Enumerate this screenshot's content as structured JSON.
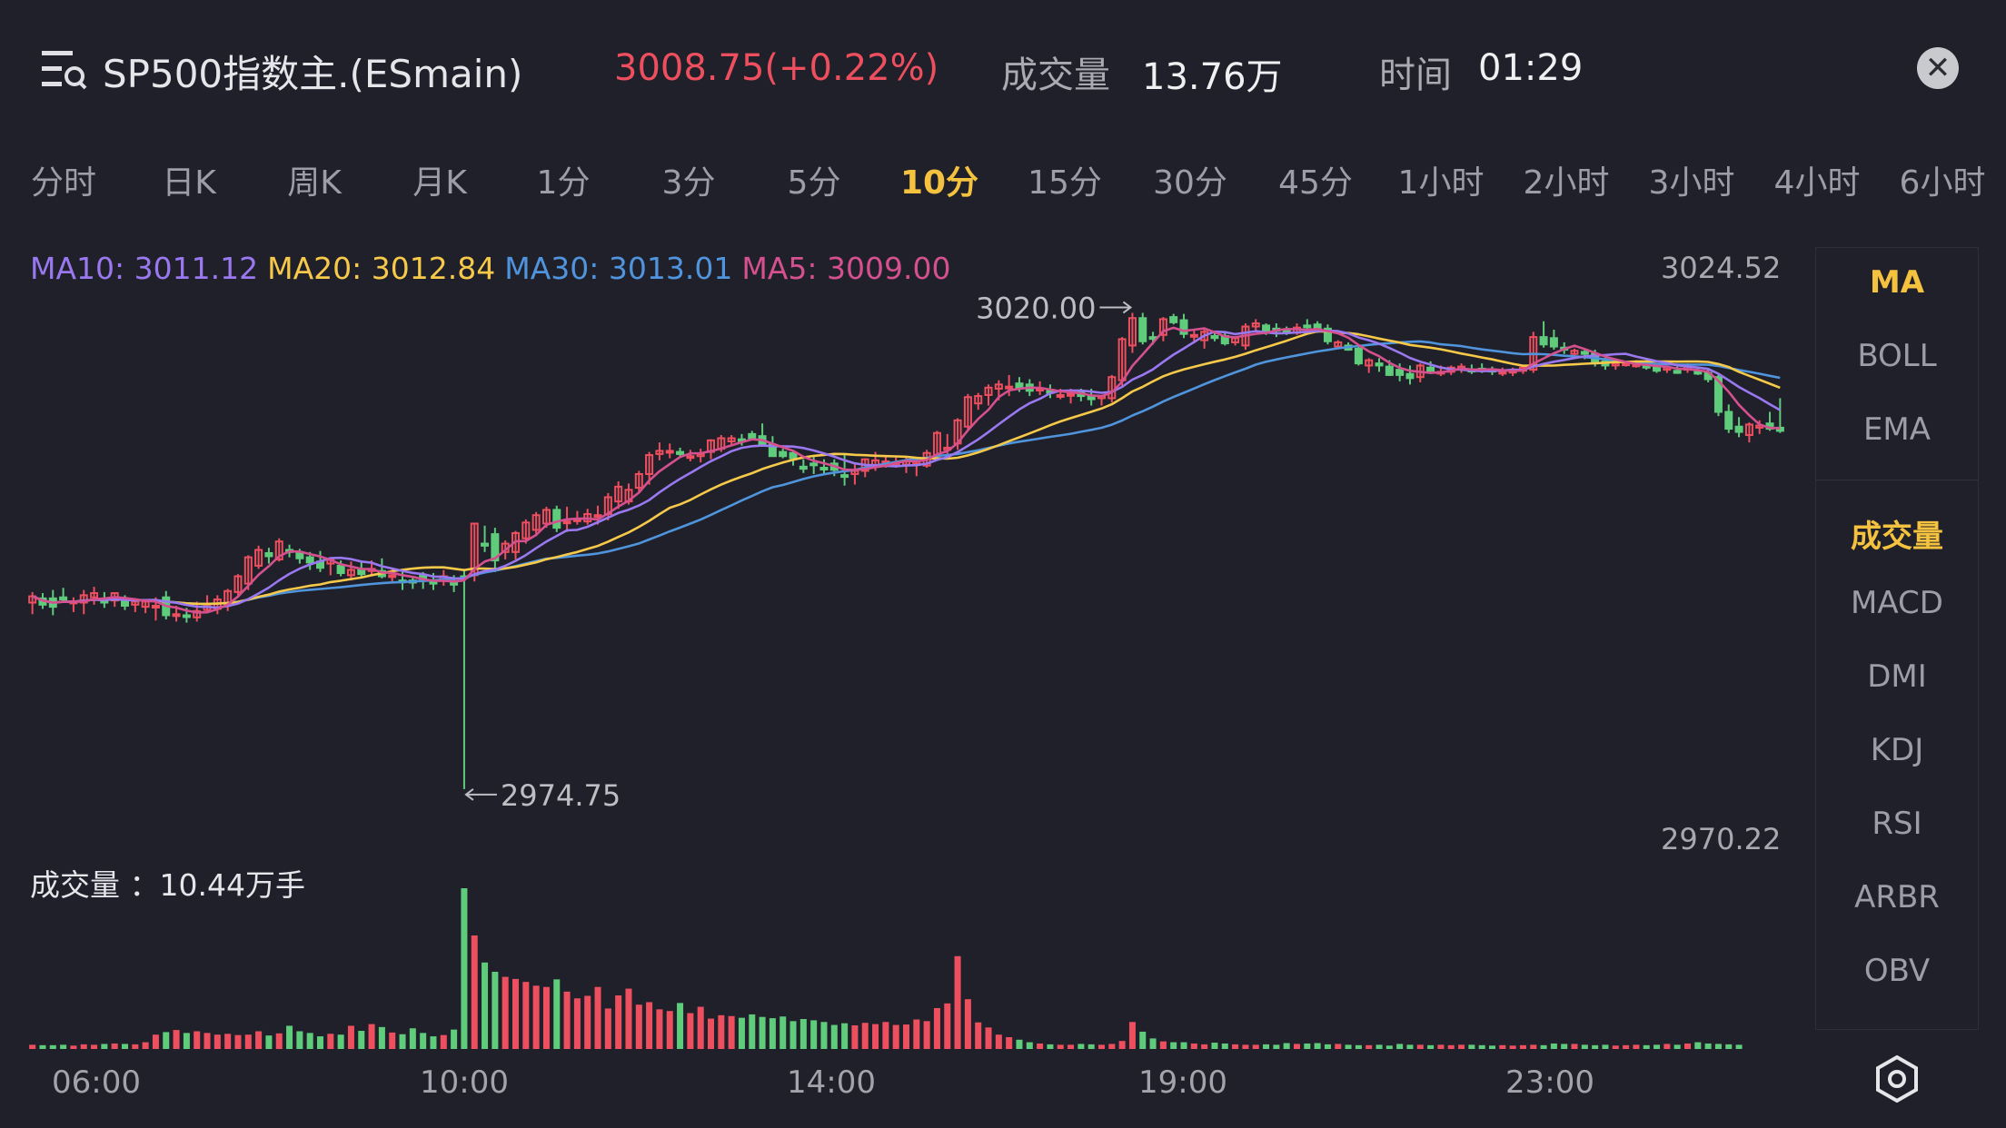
{
  "header": {
    "title": "SP500指数主.(ESmain)",
    "price": "3008.75(+0.22%)",
    "volume_label": "成交量",
    "volume_value": "13.76万",
    "time_label": "时间",
    "time_value": "01:29"
  },
  "tabs": [
    "分时",
    "日K",
    "周K",
    "月K",
    "1分",
    "3分",
    "5分",
    "10分",
    "15分",
    "30分",
    "45分",
    "1小时",
    "2小时",
    "3小时",
    "4小时",
    "6小时"
  ],
  "active_tab": "10分",
  "ma_legend": {
    "ma10": "MA10: 3011.12",
    "ma20": "MA20: 3012.84",
    "ma30": "MA30: 3013.01",
    "ma5": "MA5: 3009.00"
  },
  "axis": {
    "high": "3024.52",
    "low": "2970.22"
  },
  "annotations": {
    "max": "3020.00",
    "min": "2974.75"
  },
  "volume_legend": "成交量 ：10.44万手",
  "x_labels": [
    "06:00",
    "10:00",
    "14:00",
    "19:00",
    "23:00"
  ],
  "side_panel": {
    "main_items": [
      "MA",
      "BOLL",
      "EMA"
    ],
    "sub_items": [
      "成交量",
      "MACD",
      "DMI",
      "KDJ",
      "RSI",
      "ARBR",
      "OBV"
    ],
    "active_main": "MA",
    "active_sub": "成交量"
  },
  "colors": {
    "up": "#ee4f5f",
    "down": "#5fcc7c",
    "ma5": "#d4508e",
    "ma10": "#9a78f0",
    "ma20": "#f6c94a",
    "ma30": "#4f94dc",
    "accent": "#f4c23e"
  },
  "chart_data": {
    "type": "candlestick",
    "ylim": [
      2970.22,
      3024.52
    ],
    "ohlc": [
      [
        2992.5,
        2993.5,
        2991.4,
        2993.1
      ],
      [
        2992.9,
        2993.4,
        2991.9,
        2992.3
      ],
      [
        2992.9,
        2993.7,
        2991.3,
        2992.1
      ],
      [
        2993.0,
        2993.9,
        2992.6,
        2992.8
      ],
      [
        2992.5,
        2993.0,
        2991.6,
        2992.6
      ],
      [
        2992.5,
        2993.7,
        2991.4,
        2993.2
      ],
      [
        2993.0,
        2994.0,
        2992.3,
        2993.4
      ],
      [
        2992.7,
        2993.5,
        2992.0,
        2992.5
      ],
      [
        2992.7,
        2993.4,
        2992.1,
        2993.4
      ],
      [
        2992.8,
        2993.2,
        2991.8,
        2992.2
      ],
      [
        2992.3,
        2992.9,
        2991.6,
        2992.6
      ],
      [
        2992.1,
        2992.6,
        2991.5,
        2992.6
      ],
      [
        2992.1,
        2993.0,
        2990.8,
        2992.2
      ],
      [
        2993.0,
        2993.6,
        2990.9,
        2991.3
      ],
      [
        2991.4,
        2992.2,
        2990.7,
        2991.4
      ],
      [
        2991.3,
        2992.0,
        2990.6,
        2991.2
      ],
      [
        2991.1,
        2992.6,
        2990.7,
        2991.7
      ],
      [
        2991.8,
        2993.2,
        2991.6,
        2992.3
      ],
      [
        2991.9,
        2993.2,
        2991.4,
        2992.8
      ],
      [
        2992.3,
        2993.8,
        2991.7,
        2993.6
      ],
      [
        2993.5,
        2995.2,
        2993.2,
        2995.0
      ],
      [
        2994.3,
        2997.0,
        2993.7,
        2996.8
      ],
      [
        2996.0,
        2997.9,
        2995.7,
        2997.5
      ],
      [
        2997.2,
        2997.7,
        2996.2,
        2996.9
      ],
      [
        2996.6,
        2998.6,
        2996.4,
        2998.3
      ],
      [
        2997.5,
        2998.0,
        2996.8,
        2997.3
      ],
      [
        2997.3,
        2997.6,
        2996.2,
        2996.7
      ],
      [
        2996.8,
        2997.3,
        2995.6,
        2996.3
      ],
      [
        2996.4,
        2997.4,
        2995.4,
        2995.8
      ],
      [
        2996.2,
        2996.6,
        2995.1,
        2996.6
      ],
      [
        2996.0,
        2996.5,
        2995.0,
        2995.3
      ],
      [
        2995.1,
        2996.4,
        2994.6,
        2995.6
      ],
      [
        2995.7,
        2996.4,
        2994.9,
        2995.2
      ],
      [
        2995.5,
        2996.5,
        2995.1,
        2995.7
      ],
      [
        2995.5,
        2996.7,
        2994.8,
        2995.0
      ],
      [
        2995.1,
        2995.7,
        2994.3,
        2995.1
      ],
      [
        2994.6,
        2995.4,
        2993.7,
        2994.5
      ],
      [
        2994.6,
        2995.0,
        2993.8,
        2994.4
      ],
      [
        2995.1,
        2995.4,
        2993.8,
        2994.6
      ],
      [
        2994.6,
        2995.3,
        2993.7,
        2994.3
      ],
      [
        2994.7,
        2995.6,
        2994.1,
        2995.0
      ],
      [
        2994.5,
        2995.1,
        2993.5,
        2994.2
      ],
      [
        2995.0,
        2995.7,
        2974.8,
        2994.9
      ],
      [
        2995.1,
        3000.0,
        2994.5,
        3000.0
      ],
      [
        2998.1,
        2999.8,
        2997.3,
        2997.9
      ],
      [
        2999.0,
        2999.6,
        2995.4,
        2996.5
      ],
      [
        2997.3,
        2998.4,
        2996.6,
        2998.1
      ],
      [
        2997.3,
        2999.3,
        2996.6,
        2999.1
      ],
      [
        2998.6,
        3000.4,
        2998.1,
        3000.1
      ],
      [
        2999.4,
        3001.1,
        2998.8,
        3000.8
      ],
      [
        3000.0,
        3001.6,
        2999.6,
        3001.3
      ],
      [
        3001.3,
        3001.7,
        2999.2,
        2999.6
      ],
      [
        3000.1,
        3001.6,
        2999.2,
        3000.2
      ],
      [
        3000.4,
        3001.2,
        2999.9,
        3000.4
      ],
      [
        3000.2,
        3001.4,
        2999.9,
        3000.9
      ],
      [
        3000.8,
        3001.7,
        2999.9,
        3000.8
      ],
      [
        3000.9,
        3002.9,
        3000.3,
        3002.5
      ],
      [
        3002.1,
        3004.0,
        3001.4,
        3003.5
      ],
      [
        3002.1,
        3003.8,
        3001.8,
        3003.2
      ],
      [
        3003.4,
        3005.0,
        3003.0,
        3004.7
      ],
      [
        3004.7,
        3006.8,
        3003.7,
        3006.5
      ],
      [
        3006.6,
        3007.7,
        3006.0,
        3006.9
      ],
      [
        3006.9,
        3007.6,
        3006.2,
        3006.9
      ],
      [
        3006.8,
        3007.2,
        3006.3,
        3006.6
      ],
      [
        3006.4,
        3007.0,
        3005.9,
        3006.4
      ],
      [
        3006.4,
        3007.1,
        3005.8,
        3006.6
      ],
      [
        3006.8,
        3008.0,
        3006.1,
        3007.9
      ],
      [
        3007.1,
        3008.4,
        3006.8,
        3008.1
      ],
      [
        3007.8,
        3008.4,
        3007.5,
        3008.1
      ],
      [
        3008.0,
        3008.5,
        3007.4,
        3007.9
      ],
      [
        3008.5,
        3008.8,
        3007.9,
        3008.0
      ],
      [
        3008.3,
        3009.5,
        3007.4,
        3007.5
      ],
      [
        3007.5,
        3008.3,
        3006.4,
        3006.4
      ],
      [
        3006.8,
        3007.1,
        3006.2,
        3006.4
      ],
      [
        3006.7,
        3007.0,
        3005.5,
        3006.2
      ],
      [
        3005.4,
        3006.1,
        3004.8,
        3005.2
      ],
      [
        3005.7,
        3006.5,
        3004.7,
        3005.6
      ],
      [
        3005.3,
        3006.1,
        3004.6,
        3005.2
      ],
      [
        3005.7,
        3006.1,
        3004.5,
        3005.1
      ],
      [
        3004.6,
        3006.5,
        3003.6,
        3004.5
      ],
      [
        3004.7,
        3005.6,
        3003.7,
        3005.0
      ],
      [
        3005.0,
        3006.2,
        3004.4,
        3006.1
      ],
      [
        3005.4,
        3006.8,
        3005.0,
        3006.0
      ],
      [
        3005.9,
        3006.3,
        3005.3,
        3005.9
      ],
      [
        3005.8,
        3006.4,
        3005.3,
        3005.8
      ],
      [
        3005.6,
        3006.3,
        3004.8,
        3005.9
      ],
      [
        3005.7,
        3006.2,
        3004.5,
        3005.9
      ],
      [
        3005.5,
        3007.0,
        3005.3,
        3006.7
      ],
      [
        3006.5,
        3008.8,
        3006.3,
        3008.6
      ],
      [
        3007.0,
        3008.5,
        3006.6,
        3007.2
      ],
      [
        3007.6,
        3010.0,
        3007.0,
        3009.8
      ],
      [
        3009.2,
        3012.3,
        3008.8,
        3012.0
      ],
      [
        3011.4,
        3012.4,
        3010.8,
        3012.1
      ],
      [
        3012.2,
        3013.2,
        3011.2,
        3012.9
      ],
      [
        3012.8,
        3013.6,
        3011.7,
        3013.2
      ],
      [
        3012.9,
        3014.1,
        3012.1,
        3013.0
      ],
      [
        3013.3,
        3013.9,
        3012.5,
        3012.8
      ],
      [
        3013.2,
        3013.7,
        3012.1,
        3012.6
      ],
      [
        3012.8,
        3013.5,
        3012.2,
        3012.8
      ],
      [
        3012.7,
        3013.2,
        3011.9,
        3012.4
      ],
      [
        3012.2,
        3012.8,
        3011.8,
        3012.2
      ],
      [
        3012.2,
        3012.8,
        3011.4,
        3012.3
      ],
      [
        3012.5,
        3012.8,
        3011.6,
        3012.1
      ],
      [
        3012.1,
        3012.8,
        3011.2,
        3011.8
      ],
      [
        3011.9,
        3012.2,
        3011.2,
        3012.1
      ],
      [
        3011.9,
        3014.1,
        3011.5,
        3013.9
      ],
      [
        3013.6,
        3017.7,
        3013.0,
        3017.5
      ],
      [
        3016.9,
        3020.0,
        3016.2,
        3019.5
      ],
      [
        3019.5,
        3020.0,
        3017.0,
        3017.3
      ],
      [
        3017.7,
        3018.2,
        3017.0,
        3017.6
      ],
      [
        3017.9,
        3019.6,
        3017.3,
        3019.4
      ],
      [
        3019.6,
        3019.9,
        3018.9,
        3019.1
      ],
      [
        3019.3,
        3019.9,
        3017.6,
        3018.0
      ],
      [
        3017.8,
        3018.4,
        3017.1,
        3017.9
      ],
      [
        3017.4,
        3018.4,
        3016.6,
        3018.2
      ],
      [
        3017.8,
        3018.3,
        3017.3,
        3017.6
      ],
      [
        3017.8,
        3018.1,
        3016.9,
        3017.1
      ],
      [
        3017.2,
        3017.6,
        3016.9,
        3017.6
      ],
      [
        3016.9,
        3019.0,
        3016.5,
        3018.7
      ],
      [
        3018.7,
        3019.4,
        3018.2,
        3019.0
      ],
      [
        3018.8,
        3019.0,
        3017.9,
        3018.1
      ],
      [
        3018.5,
        3019.0,
        3017.7,
        3018.3
      ],
      [
        3018.3,
        3018.7,
        3017.9,
        3018.2
      ],
      [
        3018.1,
        3019.0,
        3017.9,
        3018.6
      ],
      [
        3018.8,
        3019.4,
        3018.4,
        3018.7
      ],
      [
        3018.9,
        3019.2,
        3018.1,
        3018.5
      ],
      [
        3018.5,
        3018.9,
        3017.0,
        3017.3
      ],
      [
        3016.8,
        3017.4,
        3016.6,
        3017.2
      ],
      [
        3016.9,
        3017.2,
        3016.4,
        3016.5
      ],
      [
        3016.6,
        3017.0,
        3015.0,
        3015.2
      ],
      [
        3015.0,
        3015.7,
        3014.3,
        3015.5
      ],
      [
        3015.2,
        3015.7,
        3014.4,
        3015.0
      ],
      [
        3014.9,
        3015.5,
        3014.0,
        3014.1
      ],
      [
        3014.6,
        3015.2,
        3013.5,
        3014.1
      ],
      [
        3014.2,
        3015.0,
        3013.2,
        3013.8
      ],
      [
        3013.9,
        3015.2,
        3013.4,
        3015.0
      ],
      [
        3014.8,
        3015.4,
        3014.2,
        3014.5
      ],
      [
        3014.4,
        3015.0,
        3014.0,
        3014.4
      ],
      [
        3014.4,
        3015.0,
        3014.1,
        3014.8
      ],
      [
        3014.7,
        3015.2,
        3014.3,
        3014.9
      ],
      [
        3014.6,
        3015.1,
        3014.2,
        3014.5
      ],
      [
        3014.7,
        3015.2,
        3014.3,
        3014.5
      ],
      [
        3014.6,
        3014.9,
        3014.1,
        3014.5
      ],
      [
        3014.3,
        3014.8,
        3014.0,
        3014.4
      ],
      [
        3014.5,
        3014.8,
        3014.0,
        3014.5
      ],
      [
        3014.5,
        3015.0,
        3014.2,
        3014.8
      ],
      [
        3014.6,
        3018.2,
        3014.3,
        3017.7
      ],
      [
        3017.7,
        3019.2,
        3016.7,
        3017.0
      ],
      [
        3017.6,
        3018.4,
        3016.5,
        3016.8
      ],
      [
        3016.7,
        3017.2,
        3016.1,
        3016.5
      ],
      [
        3016.1,
        3016.6,
        3015.8,
        3016.4
      ],
      [
        3016.3,
        3016.6,
        3015.6,
        3016.1
      ],
      [
        3016.1,
        3016.5,
        3014.9,
        3015.2
      ],
      [
        3015.4,
        3016.0,
        3014.6,
        3015.0
      ],
      [
        3015.0,
        3015.5,
        3014.6,
        3015.2
      ],
      [
        3015.1,
        3015.4,
        3014.9,
        3015.2
      ],
      [
        3015.1,
        3015.5,
        3014.8,
        3015.1
      ],
      [
        3015.2,
        3015.5,
        3014.6,
        3014.8
      ],
      [
        3014.9,
        3015.2,
        3014.3,
        3014.5
      ],
      [
        3014.6,
        3014.9,
        3014.3,
        3014.8
      ],
      [
        3014.5,
        3014.9,
        3014.2,
        3014.3
      ],
      [
        3014.6,
        3015.2,
        3014.3,
        3014.9
      ],
      [
        3014.4,
        3014.7,
        3014.1,
        3014.3
      ],
      [
        3014.3,
        3014.7,
        3013.4,
        3013.7
      ],
      [
        3013.9,
        3014.2,
        3010.2,
        3010.6
      ],
      [
        3010.6,
        3011.3,
        3008.6,
        3009.0
      ],
      [
        3009.2,
        3010.1,
        3008.2,
        3008.7
      ],
      [
        3008.4,
        3009.6,
        3007.7,
        3009.4
      ],
      [
        3009.1,
        3009.8,
        3008.5,
        3009.3
      ],
      [
        3009.5,
        3010.6,
        3008.8,
        3009.0
      ],
      [
        3009.1,
        3011.9,
        3008.6,
        3008.8
      ]
    ],
    "volume": [
      1.0,
      0.9,
      0.9,
      1.0,
      0.8,
      1.1,
      1.0,
      1.2,
      1.3,
      1.2,
      1.1,
      1.6,
      3.4,
      4.0,
      4.5,
      3.8,
      4.2,
      3.8,
      3.4,
      3.6,
      3.3,
      3.4,
      4.2,
      3.2,
      3.7,
      5.5,
      4.2,
      3.8,
      3.0,
      3.6,
      3.4,
      5.5,
      4.3,
      5.9,
      5.2,
      3.9,
      3.5,
      4.9,
      3.8,
      3.0,
      3.3,
      4.6,
      38.1,
      26.9,
      20.5,
      18.3,
      17.1,
      16.6,
      15.9,
      15.0,
      14.7,
      16.5,
      13.6,
      12.0,
      12.6,
      14.7,
      9.6,
      12.7,
      14.3,
      10.5,
      11.1,
      9.4,
      9.0,
      10.9,
      8.5,
      10.0,
      7.2,
      8.0,
      7.8,
      7.4,
      8.2,
      7.6,
      7.3,
      7.7,
      6.6,
      7.1,
      6.8,
      6.4,
      5.7,
      6.1,
      5.6,
      6.2,
      5.9,
      6.4,
      5.7,
      5.8,
      7.0,
      6.6,
      9.7,
      10.8,
      22.0,
      11.8,
      6.3,
      5.1,
      3.4,
      2.8,
      2.2,
      1.6,
      1.3,
      1.1,
      1.0,
      1.0,
      1.2,
      1.1,
      1.0,
      1.2,
      1.9,
      6.4,
      4.1,
      2.5,
      1.8,
      1.6,
      1.6,
      1.3,
      1.1,
      1.5,
      1.3,
      1.1,
      1.0,
      1.0,
      1.1,
      1.0,
      1.4,
      1.2,
      1.3,
      1.4,
      1.1,
      1.2,
      1.0,
      0.9,
      0.9,
      1.0,
      0.8,
      1.2,
      1.0,
      1.0,
      0.9,
      1.0,
      0.9,
      1.0,
      1.0,
      0.9,
      0.8,
      0.9,
      0.8,
      0.9,
      1.0,
      0.9,
      1.3,
      1.2,
      1.2,
      1.0,
      0.9,
      1.0,
      0.8,
      0.9,
      1.0,
      0.9,
      1.0,
      1.2,
      1.0,
      1.3,
      1.6,
      1.3,
      1.2,
      1.1,
      1.0
    ],
    "volume_unit": "万手",
    "x_labels": [
      "06:00",
      "10:00",
      "14:00",
      "19:00",
      "23:00"
    ],
    "series": [
      {
        "name": "MA5",
        "color": "#d4508e"
      },
      {
        "name": "MA10",
        "color": "#9a78f0"
      },
      {
        "name": "MA20",
        "color": "#f6c94a"
      },
      {
        "name": "MA30",
        "color": "#4f94dc"
      }
    ]
  }
}
